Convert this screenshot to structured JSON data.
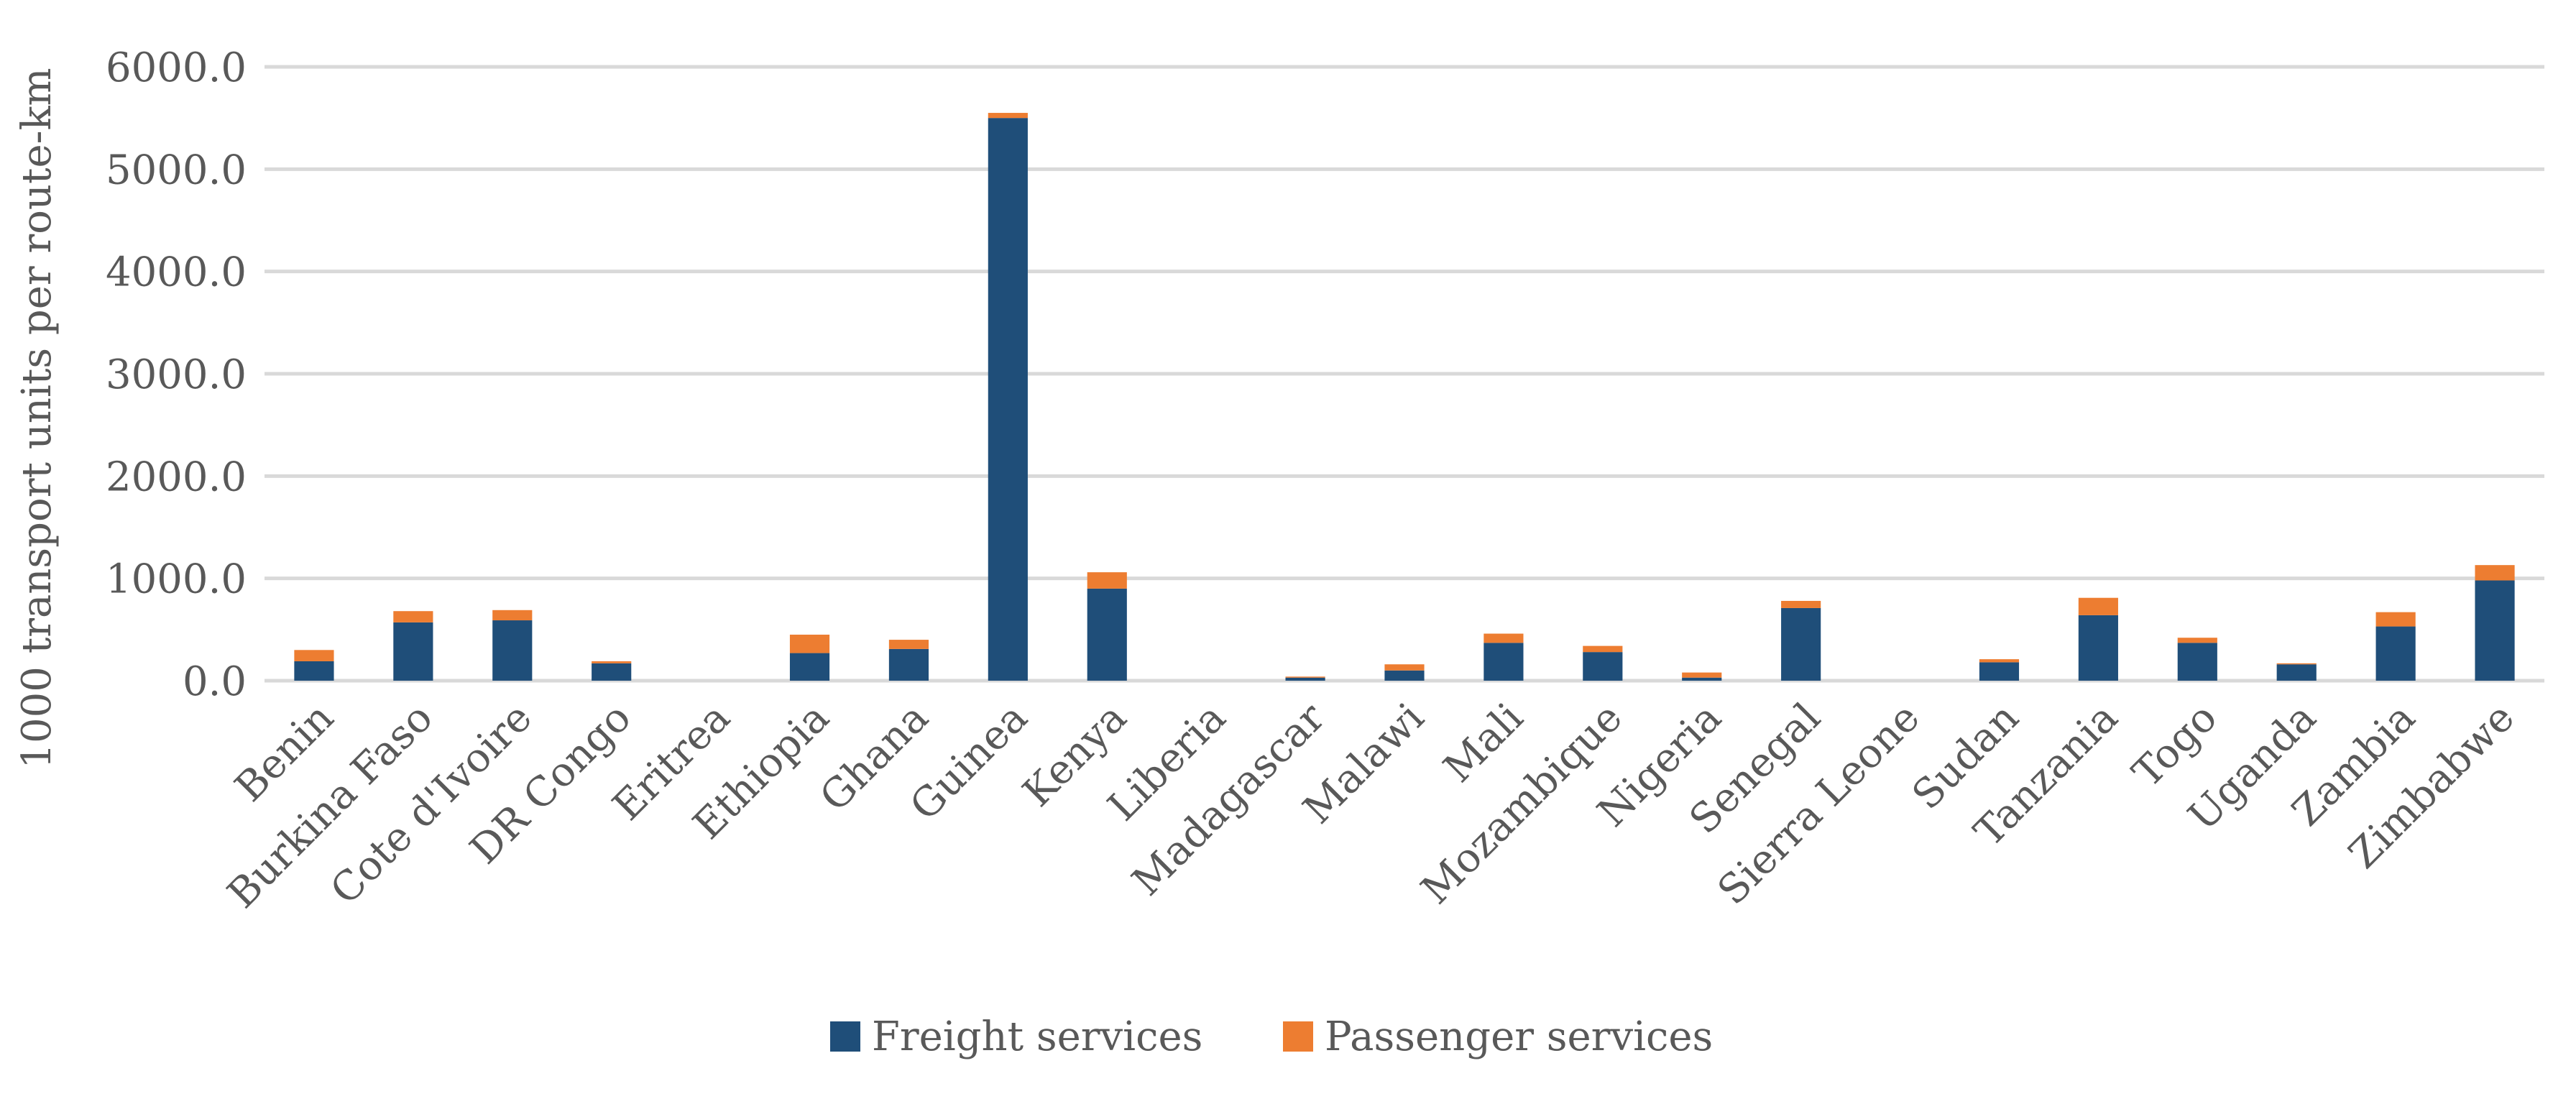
{
  "chart_data": {
    "type": "bar",
    "stacked": true,
    "title": "",
    "xlabel": "",
    "ylabel": "1000 transport units per route-km",
    "ylim": [
      0,
      6000
    ],
    "yticks": [
      "0.0",
      "1000.0",
      "2000.0",
      "3000.0",
      "4000.0",
      "5000.0",
      "6000.0"
    ],
    "grid": true,
    "legend_position": "bottom",
    "categories": [
      "Benin",
      "Burkina Faso",
      "Cote d'Ivoire",
      "DR Congo",
      "Eritrea",
      "Ethiopia",
      "Ghana",
      "Guinea",
      "Kenya",
      "Liberia",
      "Madagascar",
      "Malawi",
      "Mali",
      "Mozambique",
      "Nigeria",
      "Senegal",
      "Sierra Leone",
      "Sudan",
      "Tanzania",
      "Togo",
      "Uganda",
      "Zambia",
      "Zimbabwe"
    ],
    "series": [
      {
        "name": "Freight services",
        "color": "#1f4e79",
        "values": [
          190,
          570,
          590,
          170,
          0,
          270,
          310,
          5500,
          900,
          0,
          30,
          100,
          370,
          280,
          30,
          710,
          0,
          180,
          640,
          370,
          160,
          530,
          980
        ]
      },
      {
        "name": "Passenger services",
        "color": "#ed7d31",
        "values": [
          110,
          110,
          100,
          20,
          0,
          180,
          90,
          50,
          160,
          0,
          10,
          60,
          90,
          60,
          50,
          70,
          0,
          30,
          170,
          50,
          10,
          140,
          150
        ]
      }
    ]
  }
}
